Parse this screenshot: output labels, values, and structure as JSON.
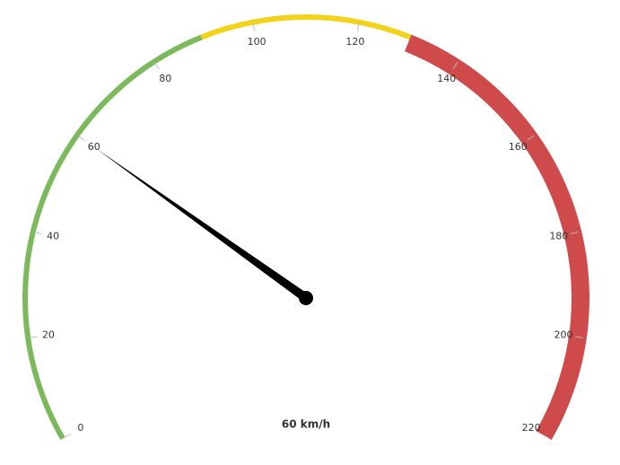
{
  "chart_data": {
    "type": "gauge",
    "ylim": [
      0,
      220
    ],
    "yticks": [
      0,
      20,
      40,
      60,
      80,
      100,
      120,
      140,
      160,
      180,
      200,
      220
    ],
    "bands": [
      {
        "from": 0,
        "to": 90,
        "color": "#7cb85c"
      },
      {
        "from": 90,
        "to": 130,
        "color": "#f2d21b"
      },
      {
        "from": 130,
        "to": 220,
        "color": "#cf4a4a"
      }
    ],
    "values": [
      60
    ],
    "value_labels": [
      "60 km/h"
    ]
  }
}
